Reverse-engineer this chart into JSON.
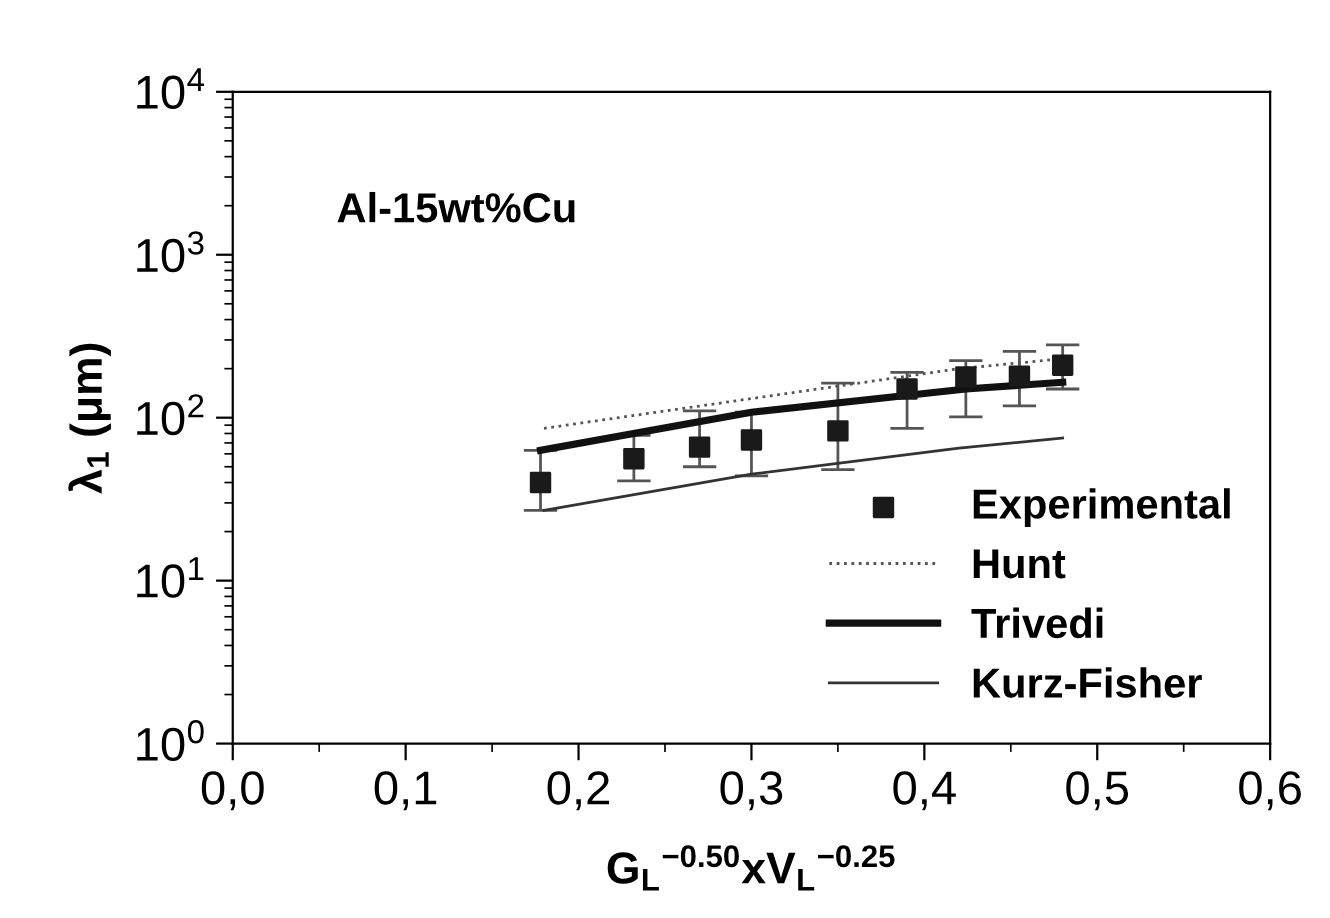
{
  "chart_data": {
    "type": "scatter",
    "xlabel": "G$_{L}$$^{−0.50}$xV$_{L}$$^{−0.25}$",
    "ylabel": "λ$_{1}$ (μm)",
    "annotations": [
      "Al-15wt%Cu"
    ],
    "series": [
      {
        "name": "Experimental",
        "color": "#1a1a1a",
        "marker": "square",
        "x": [
          0.178,
          0.232,
          0.27,
          0.3,
          0.35,
          0.39,
          0.424,
          0.455,
          0.48
        ],
        "values": [
          40,
          56,
          66,
          73,
          83,
          150,
          178,
          180,
          210
        ],
        "errors": [
          [
            27,
            63
          ],
          [
            41,
            78
          ],
          [
            50,
            110
          ],
          [
            44,
            108
          ],
          [
            48,
            163
          ],
          [
            86,
            190
          ],
          [
            101,
            224
          ],
          [
            118,
            255
          ],
          [
            150,
            280
          ]
        ]
      },
      {
        "name": "Hunt",
        "type": "line",
        "color": "#555555",
        "line_style": "dotted",
        "x": [
          0.18,
          0.3,
          0.42,
          0.48
        ],
        "values": [
          86,
          131,
          200,
          230
        ]
      },
      {
        "name": "Trivedi",
        "type": "line",
        "color": "#111111",
        "line_style": "solid",
        "x": [
          0.178,
          0.3,
          0.424,
          0.48
        ],
        "values": [
          63,
          108,
          150,
          165
        ]
      },
      {
        "name": "Kurz-Fisher",
        "type": "line",
        "color": "#333333",
        "line_style": "solid",
        "x": [
          0.18,
          0.3,
          0.42,
          0.48
        ],
        "values": [
          27,
          45,
          65,
          75
        ]
      }
    ],
    "log": "y",
    "xlim": [
      0,
      0.6
    ],
    "ylim": [
      1,
      10000
    ],
    "xticks": [
      {
        "value": 0,
        "label": "0,0"
      },
      {
        "value": 0.1,
        "label": "0,1"
      },
      {
        "value": 0.2,
        "label": "0,2"
      },
      {
        "value": 0.3,
        "label": "0,3"
      },
      {
        "value": 0.4,
        "label": "0,4"
      },
      {
        "value": 0.5,
        "label": "0,5"
      },
      {
        "value": 0.6,
        "label": "0,6"
      }
    ],
    "yticks": [
      {
        "value": 1,
        "label": "10$^{0}$"
      },
      {
        "value": 10,
        "label": "10$^{1}$"
      },
      {
        "value": 100,
        "label": "10$^{2}$"
      },
      {
        "value": 1000,
        "label": "10$^{3}$"
      },
      {
        "value": 10000,
        "label": "10$^{4}$"
      }
    ],
    "grid": false,
    "legend": "bottom right"
  }
}
